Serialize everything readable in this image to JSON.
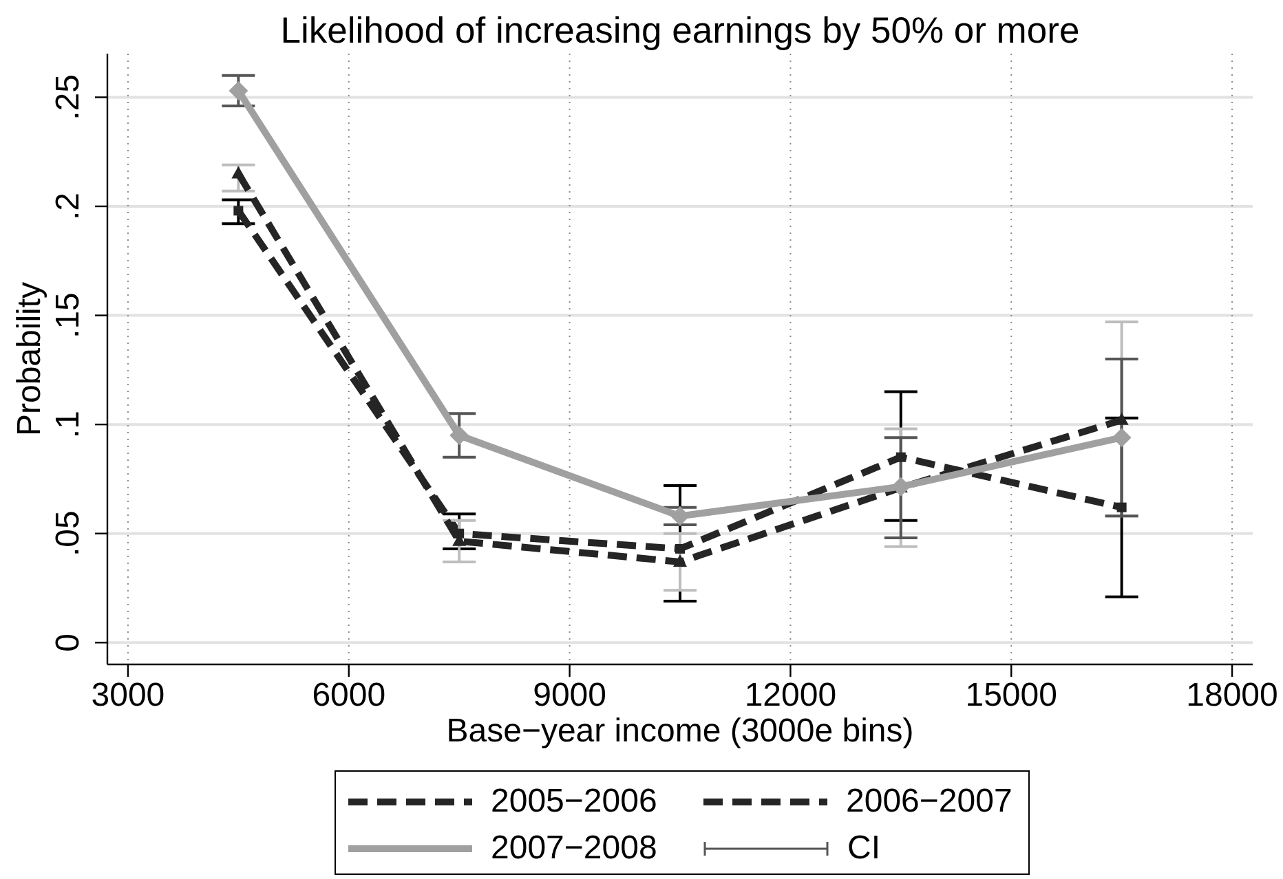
{
  "chart_data": {
    "type": "line",
    "title": "Likelihood of increasing earnings by 50% or more",
    "xlabel": "Base−year income (3000e bins)",
    "ylabel": "Probability",
    "x": [
      4500,
      7500,
      10500,
      13500,
      16500
    ],
    "series": [
      {
        "name": "2005−2006",
        "color": "#252525",
        "line_style": "dashed",
        "marker": "square",
        "values": [
          0.198,
          0.05,
          0.043,
          0.085,
          0.062
        ],
        "errors": [
          [
            0.192,
            0.203
          ],
          [
            0.043,
            0.059
          ],
          [
            0.019,
            0.072
          ],
          [
            0.056,
            0.115
          ],
          [
            0.021,
            0.103
          ]
        ]
      },
      {
        "name": "2006−2007",
        "color": "#252525",
        "line_style": "dashed",
        "marker": "triangle",
        "values": [
          0.215,
          0.0465,
          0.037,
          0.071,
          0.102
        ],
        "errors": [
          [
            0.207,
            0.219
          ],
          [
            0.037,
            0.056
          ],
          [
            0.024,
            0.05
          ],
          [
            0.044,
            0.098
          ],
          [
            0.058,
            0.147
          ]
        ]
      },
      {
        "name": "2007−2008",
        "color": "#a0a0a0",
        "line_style": "solid",
        "marker": "diamond",
        "values": [
          0.253,
          0.095,
          0.058,
          0.0715,
          0.094
        ],
        "errors": [
          [
            0.246,
            0.26
          ],
          [
            0.085,
            0.105
          ],
          [
            0.054,
            0.062
          ],
          [
            0.048,
            0.094
          ],
          [
            0.058,
            0.13
          ]
        ]
      }
    ],
    "xlim": [
      2720,
      18280
    ],
    "xticks": [
      3000,
      6000,
      9000,
      12000,
      15000,
      18000
    ],
    "ylim": [
      -0.01,
      0.27
    ],
    "yticks": [
      0,
      {
        "value": 0.05,
        "label": ".05"
      },
      {
        "value": 0.1,
        "label": ".1"
      },
      {
        "value": 0.15,
        "label": ".15"
      },
      {
        "value": 0.2,
        "label": ".2"
      },
      {
        "value": 0.25,
        "label": ".25"
      }
    ],
    "grid": true,
    "legend": "bottom",
    "annotations": [
      "CI"
    ]
  }
}
